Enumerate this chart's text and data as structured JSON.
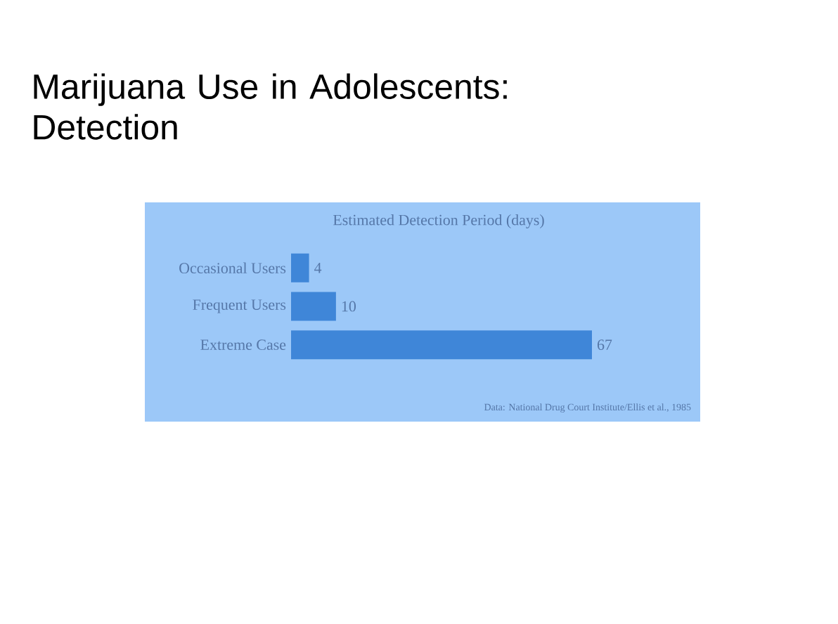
{
  "chart_data": {
    "type": "bar",
    "orientation": "horizontal",
    "title": "Marijuana Use in Adolescents: Detection",
    "subtitle": "Estimated Detection Period (days)",
    "categories": [
      "Occasional Users",
      "Frequent Users",
      "Extreme Case"
    ],
    "values": [
      4,
      10,
      67
    ],
    "color": "#3f86d8",
    "data_labels": true,
    "annotations": [
      "Data: National Drug Court Institute/Ellis et al., 1985"
    ]
  }
}
